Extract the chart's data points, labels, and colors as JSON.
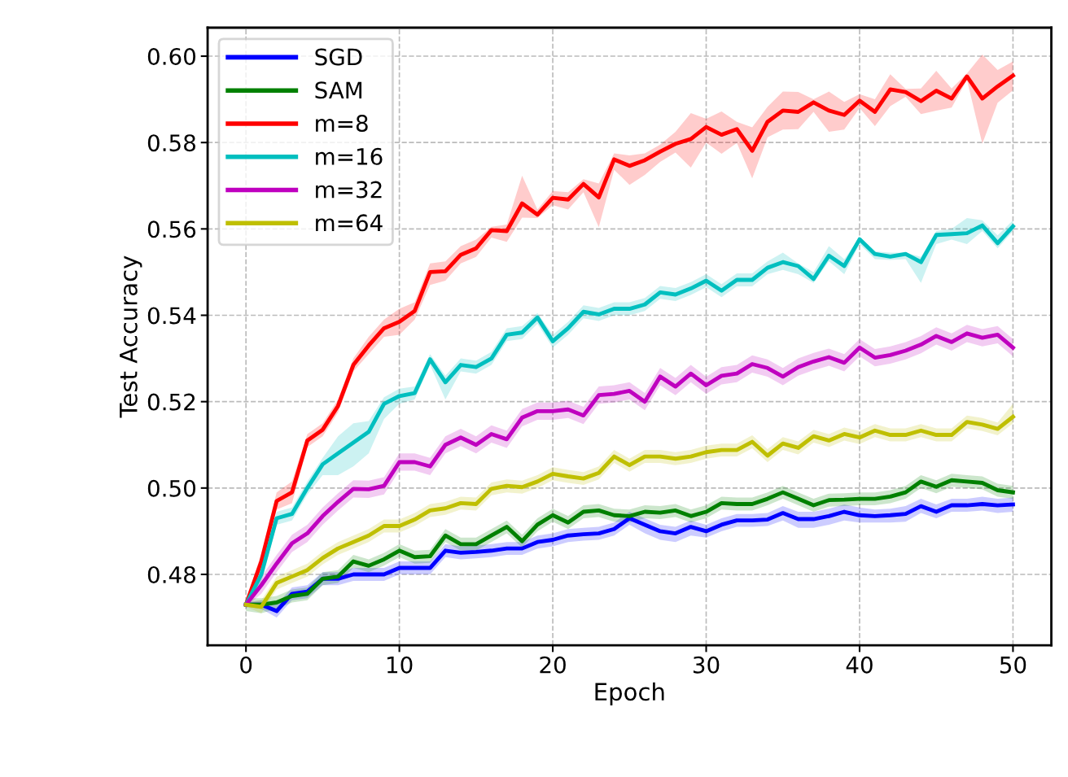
{
  "chart_data": {
    "type": "line",
    "xlabel": "Epoch",
    "ylabel": "Test Accuracy",
    "x": [
      0,
      1,
      2,
      3,
      4,
      5,
      6,
      7,
      8,
      9,
      10,
      11,
      12,
      13,
      14,
      15,
      16,
      17,
      18,
      19,
      20,
      21,
      22,
      23,
      24,
      25,
      26,
      27,
      28,
      29,
      30,
      31,
      32,
      33,
      34,
      35,
      36,
      37,
      38,
      39,
      40,
      41,
      42,
      43,
      44,
      45,
      46,
      47,
      48,
      49,
      50
    ],
    "series": [
      {
        "name": "SGD",
        "color": "#0000ff",
        "values": [
          0.473,
          0.473,
          0.4715,
          0.4755,
          0.476,
          0.479,
          0.479,
          0.48,
          0.48,
          0.48,
          0.4815,
          0.4815,
          0.4815,
          0.4855,
          0.485,
          0.4852,
          0.4855,
          0.486,
          0.486,
          0.4875,
          0.488,
          0.489,
          0.4893,
          0.4895,
          0.4905,
          0.493,
          0.4915,
          0.49,
          0.4895,
          0.491,
          0.49,
          0.4915,
          0.4925,
          0.4925,
          0.4927,
          0.4942,
          0.4928,
          0.4928,
          0.4935,
          0.4945,
          0.4937,
          0.4935,
          0.4937,
          0.494,
          0.4958,
          0.4945,
          0.496,
          0.496,
          0.4963,
          0.496,
          0.4962
        ],
        "lower": [
          0.4725,
          0.472,
          0.47,
          0.474,
          0.4745,
          0.4775,
          0.4775,
          0.4785,
          0.4785,
          0.4785,
          0.48,
          0.48,
          0.48,
          0.484,
          0.4835,
          0.4837,
          0.484,
          0.4845,
          0.4845,
          0.486,
          0.4865,
          0.4875,
          0.4878,
          0.488,
          0.489,
          0.4915,
          0.4895,
          0.488,
          0.4875,
          0.489,
          0.4885,
          0.49,
          0.491,
          0.491,
          0.4912,
          0.4925,
          0.4908,
          0.4908,
          0.4915,
          0.4925,
          0.492,
          0.492,
          0.492,
          0.4922,
          0.4942,
          0.493,
          0.4945,
          0.4945,
          0.4948,
          0.4942,
          0.4945
        ],
        "upper": [
          0.4735,
          0.474,
          0.473,
          0.477,
          0.4775,
          0.4805,
          0.4805,
          0.4815,
          0.4815,
          0.4815,
          0.483,
          0.483,
          0.483,
          0.487,
          0.4865,
          0.4867,
          0.487,
          0.4875,
          0.4875,
          0.489,
          0.4895,
          0.4905,
          0.4908,
          0.491,
          0.492,
          0.4945,
          0.493,
          0.4915,
          0.491,
          0.4925,
          0.4915,
          0.493,
          0.494,
          0.494,
          0.4942,
          0.4958,
          0.4945,
          0.4945,
          0.4952,
          0.4962,
          0.4955,
          0.495,
          0.4952,
          0.4958,
          0.4975,
          0.4962,
          0.4975,
          0.4975,
          0.498,
          0.4975,
          0.4978
        ]
      },
      {
        "name": "SAM",
        "color": "#008000",
        "values": [
          0.473,
          0.473,
          0.4735,
          0.475,
          0.4755,
          0.479,
          0.4795,
          0.483,
          0.482,
          0.4835,
          0.4855,
          0.484,
          0.4842,
          0.489,
          0.487,
          0.487,
          0.489,
          0.491,
          0.4877,
          0.4915,
          0.4937,
          0.492,
          0.4945,
          0.4948,
          0.4937,
          0.4935,
          0.4945,
          0.4943,
          0.4948,
          0.4935,
          0.4945,
          0.4965,
          0.4963,
          0.4963,
          0.4975,
          0.499,
          0.4975,
          0.496,
          0.4972,
          0.4973,
          0.4975,
          0.4975,
          0.498,
          0.499,
          0.5015,
          0.5003,
          0.5018,
          0.5015,
          0.5012,
          0.4995,
          0.499
        ],
        "lower": [
          0.4715,
          0.471,
          0.472,
          0.4735,
          0.474,
          0.4775,
          0.478,
          0.4815,
          0.4805,
          0.482,
          0.484,
          0.4825,
          0.4827,
          0.4875,
          0.4855,
          0.4855,
          0.4875,
          0.4895,
          0.4862,
          0.49,
          0.4922,
          0.4905,
          0.493,
          0.4933,
          0.4922,
          0.492,
          0.493,
          0.4928,
          0.4933,
          0.492,
          0.493,
          0.495,
          0.4948,
          0.4948,
          0.496,
          0.4975,
          0.496,
          0.4945,
          0.4957,
          0.4958,
          0.496,
          0.496,
          0.4965,
          0.4975,
          0.5,
          0.4988,
          0.5003,
          0.5,
          0.4997,
          0.498,
          0.4975
        ],
        "upper": [
          0.4745,
          0.4745,
          0.475,
          0.4765,
          0.477,
          0.4805,
          0.481,
          0.4845,
          0.4835,
          0.485,
          0.487,
          0.4855,
          0.4857,
          0.4905,
          0.4885,
          0.4885,
          0.4905,
          0.4925,
          0.4892,
          0.493,
          0.4952,
          0.4935,
          0.496,
          0.4963,
          0.4952,
          0.495,
          0.496,
          0.4958,
          0.4963,
          0.495,
          0.496,
          0.498,
          0.4978,
          0.4978,
          0.499,
          0.5005,
          0.499,
          0.4975,
          0.4987,
          0.4988,
          0.499,
          0.499,
          0.4995,
          0.5005,
          0.503,
          0.5018,
          0.5033,
          0.503,
          0.5027,
          0.501,
          0.5005
        ]
      },
      {
        "name": "m=8",
        "color": "#ff0000",
        "values": [
          0.473,
          0.483,
          0.497,
          0.499,
          0.511,
          0.5135,
          0.519,
          0.5285,
          0.533,
          0.537,
          0.5385,
          0.541,
          0.55,
          0.5502,
          0.554,
          0.5555,
          0.5597,
          0.5595,
          0.5659,
          0.5633,
          0.5672,
          0.5668,
          0.5704,
          0.5673,
          0.5761,
          0.5746,
          0.5759,
          0.5779,
          0.5797,
          0.5808,
          0.5836,
          0.5818,
          0.5831,
          0.5781,
          0.5848,
          0.5874,
          0.5871,
          0.5893,
          0.5874,
          0.5864,
          0.5897,
          0.5871,
          0.5923,
          0.5917,
          0.5896,
          0.592,
          0.5902,
          0.5953,
          0.5902,
          0.593,
          0.5955
        ],
        "lower": [
          0.4725,
          0.481,
          0.495,
          0.4965,
          0.5095,
          0.512,
          0.5175,
          0.527,
          0.531,
          0.535,
          0.5355,
          0.539,
          0.547,
          0.548,
          0.552,
          0.5535,
          0.558,
          0.557,
          0.5626,
          0.5625,
          0.5655,
          0.5645,
          0.5685,
          0.5604,
          0.5737,
          0.5702,
          0.5725,
          0.5755,
          0.5777,
          0.5742,
          0.58,
          0.5774,
          0.5799,
          0.5717,
          0.5812,
          0.583,
          0.5831,
          0.5871,
          0.5825,
          0.583,
          0.588,
          0.5838,
          0.5884,
          0.5906,
          0.5866,
          0.5874,
          0.5881,
          0.5945,
          0.5797,
          0.5892,
          0.5921
        ],
        "upper": [
          0.4735,
          0.485,
          0.499,
          0.5015,
          0.5125,
          0.515,
          0.5205,
          0.53,
          0.535,
          0.539,
          0.5415,
          0.543,
          0.552,
          0.5525,
          0.556,
          0.5575,
          0.5605,
          0.561,
          0.5723,
          0.5645,
          0.5688,
          0.5685,
          0.5715,
          0.5705,
          0.5775,
          0.577,
          0.5775,
          0.5795,
          0.5825,
          0.5868,
          0.5855,
          0.5872,
          0.5848,
          0.5835,
          0.5883,
          0.5918,
          0.5917,
          0.59,
          0.5918,
          0.5894,
          0.5912,
          0.59,
          0.5958,
          0.5924,
          0.5925,
          0.5966,
          0.5925,
          0.596,
          0.6004,
          0.5968,
          0.5988
        ]
      },
      {
        "name": "m=16",
        "color": "#00bfbf",
        "values": [
          0.473,
          0.48,
          0.493,
          0.494,
          0.5,
          0.5055,
          0.508,
          0.5105,
          0.513,
          0.5195,
          0.5213,
          0.522,
          0.5298,
          0.5245,
          0.5285,
          0.528,
          0.53,
          0.5355,
          0.536,
          0.5395,
          0.534,
          0.537,
          0.5408,
          0.5402,
          0.5415,
          0.5415,
          0.5425,
          0.5453,
          0.5448,
          0.5462,
          0.548,
          0.5457,
          0.5482,
          0.5482,
          0.551,
          0.5523,
          0.5514,
          0.5484,
          0.5538,
          0.5514,
          0.5576,
          0.5542,
          0.5536,
          0.5542,
          0.5523,
          0.5586,
          0.5588,
          0.559,
          0.5608,
          0.5567,
          0.5606
        ],
        "lower": [
          0.4725,
          0.478,
          0.4915,
          0.4925,
          0.4985,
          0.503,
          0.503,
          0.505,
          0.508,
          0.516,
          0.5195,
          0.5205,
          0.5285,
          0.5205,
          0.527,
          0.5265,
          0.5285,
          0.534,
          0.5345,
          0.538,
          0.5325,
          0.5355,
          0.5393,
          0.5387,
          0.54,
          0.54,
          0.541,
          0.5438,
          0.5433,
          0.5447,
          0.5465,
          0.5442,
          0.5467,
          0.5467,
          0.5495,
          0.5505,
          0.5495,
          0.5475,
          0.5525,
          0.5495,
          0.5565,
          0.553,
          0.5528,
          0.553,
          0.5475,
          0.5565,
          0.5575,
          0.5565,
          0.5595,
          0.5555,
          0.5595
        ],
        "upper": [
          0.4735,
          0.482,
          0.4945,
          0.4955,
          0.5015,
          0.507,
          0.512,
          0.515,
          0.5155,
          0.521,
          0.523,
          0.5235,
          0.531,
          0.526,
          0.53,
          0.5295,
          0.5315,
          0.537,
          0.5375,
          0.5405,
          0.5355,
          0.5385,
          0.5423,
          0.5417,
          0.543,
          0.543,
          0.544,
          0.5468,
          0.5463,
          0.5477,
          0.5495,
          0.5472,
          0.5497,
          0.5497,
          0.5525,
          0.5545,
          0.552,
          0.55,
          0.556,
          0.553,
          0.558,
          0.5548,
          0.5545,
          0.5545,
          0.5535,
          0.5595,
          0.56,
          0.5625,
          0.562,
          0.5585,
          0.562
        ]
      },
      {
        "name": "m=32",
        "color": "#bf00bf",
        "values": [
          0.473,
          0.4775,
          0.4825,
          0.4872,
          0.4895,
          0.4935,
          0.4968,
          0.4998,
          0.4997,
          0.5005,
          0.506,
          0.506,
          0.505,
          0.51,
          0.5117,
          0.51,
          0.5125,
          0.5113,
          0.5163,
          0.5178,
          0.5178,
          0.5182,
          0.5168,
          0.5215,
          0.5218,
          0.5225,
          0.52,
          0.5258,
          0.5235,
          0.5265,
          0.5238,
          0.526,
          0.5265,
          0.5287,
          0.5278,
          0.5258,
          0.528,
          0.5293,
          0.5303,
          0.529,
          0.5325,
          0.5302,
          0.5308,
          0.5318,
          0.5332,
          0.5352,
          0.5338,
          0.5358,
          0.5348,
          0.5355,
          0.5325
        ],
        "lower": [
          0.4725,
          0.4755,
          0.4805,
          0.4852,
          0.4875,
          0.4915,
          0.4948,
          0.4978,
          0.4977,
          0.4985,
          0.504,
          0.504,
          0.503,
          0.508,
          0.5097,
          0.508,
          0.5105,
          0.5093,
          0.5143,
          0.5158,
          0.5158,
          0.5162,
          0.5148,
          0.5195,
          0.5198,
          0.5205,
          0.518,
          0.5238,
          0.5215,
          0.5245,
          0.5218,
          0.524,
          0.5245,
          0.5267,
          0.5258,
          0.5238,
          0.526,
          0.5273,
          0.5283,
          0.527,
          0.5305,
          0.5282,
          0.5288,
          0.5298,
          0.5312,
          0.5332,
          0.5318,
          0.5338,
          0.5328,
          0.5335,
          0.5305
        ],
        "upper": [
          0.4735,
          0.4795,
          0.4845,
          0.4892,
          0.4915,
          0.4955,
          0.4988,
          0.5018,
          0.5017,
          0.5025,
          0.508,
          0.508,
          0.507,
          0.512,
          0.5137,
          0.512,
          0.5145,
          0.5133,
          0.5183,
          0.5198,
          0.5198,
          0.5202,
          0.5188,
          0.5235,
          0.5238,
          0.5245,
          0.522,
          0.5278,
          0.5255,
          0.5285,
          0.5258,
          0.528,
          0.5285,
          0.5307,
          0.5298,
          0.5278,
          0.53,
          0.5313,
          0.5323,
          0.531,
          0.5345,
          0.5322,
          0.5328,
          0.5338,
          0.5352,
          0.5372,
          0.5358,
          0.5378,
          0.5368,
          0.5375,
          0.5345
        ]
      },
      {
        "name": "m=64",
        "color": "#bfbf00",
        "values": [
          0.473,
          0.4725,
          0.478,
          0.4795,
          0.481,
          0.4838,
          0.486,
          0.4875,
          0.489,
          0.4912,
          0.4912,
          0.4927,
          0.4948,
          0.4953,
          0.4965,
          0.4963,
          0.4998,
          0.5005,
          0.5002,
          0.5015,
          0.5033,
          0.5027,
          0.5022,
          0.5035,
          0.5073,
          0.5053,
          0.5073,
          0.5073,
          0.5068,
          0.5073,
          0.5083,
          0.5088,
          0.5088,
          0.5107,
          0.5075,
          0.5103,
          0.5093,
          0.512,
          0.511,
          0.5125,
          0.5117,
          0.5133,
          0.5123,
          0.5123,
          0.5133,
          0.5123,
          0.5123,
          0.5153,
          0.5147,
          0.5137,
          0.5165
        ],
        "lower": [
          0.4725,
          0.471,
          0.4765,
          0.478,
          0.4795,
          0.4823,
          0.4845,
          0.486,
          0.4875,
          0.4897,
          0.4897,
          0.4912,
          0.4933,
          0.4938,
          0.495,
          0.4948,
          0.4983,
          0.499,
          0.4987,
          0.5,
          0.5018,
          0.5012,
          0.5007,
          0.502,
          0.5058,
          0.5038,
          0.5058,
          0.5058,
          0.5053,
          0.5058,
          0.5068,
          0.5073,
          0.5073,
          0.5092,
          0.506,
          0.5088,
          0.5078,
          0.5105,
          0.5095,
          0.511,
          0.5102,
          0.5118,
          0.5108,
          0.5108,
          0.5118,
          0.5108,
          0.5108,
          0.5138,
          0.5132,
          0.5122,
          0.515
        ],
        "upper": [
          0.4735,
          0.474,
          0.4795,
          0.481,
          0.4825,
          0.4853,
          0.4875,
          0.489,
          0.4905,
          0.4927,
          0.4927,
          0.4942,
          0.4963,
          0.4968,
          0.498,
          0.4978,
          0.5013,
          0.502,
          0.5017,
          0.503,
          0.5048,
          0.5042,
          0.5037,
          0.505,
          0.5088,
          0.5068,
          0.5088,
          0.5088,
          0.5083,
          0.5088,
          0.5098,
          0.5103,
          0.5103,
          0.5122,
          0.509,
          0.5118,
          0.5108,
          0.5135,
          0.5125,
          0.514,
          0.5132,
          0.5148,
          0.5138,
          0.5138,
          0.5148,
          0.5138,
          0.5138,
          0.5168,
          0.5162,
          0.5152,
          0.5195
        ]
      }
    ],
    "xlim": [
      -2.5,
      52.5
    ],
    "ylim": [
      0.4636,
      0.6066
    ],
    "xticks": [
      0,
      10,
      20,
      30,
      40,
      50
    ],
    "yticks": [
      0.48,
      {
        "value": 0.5,
        "label": "0.50"
      },
      0.52,
      0.54,
      0.56,
      0.58,
      {
        "value": 0.6,
        "label": "0.60"
      }
    ],
    "grid": true,
    "legend": "top left"
  }
}
